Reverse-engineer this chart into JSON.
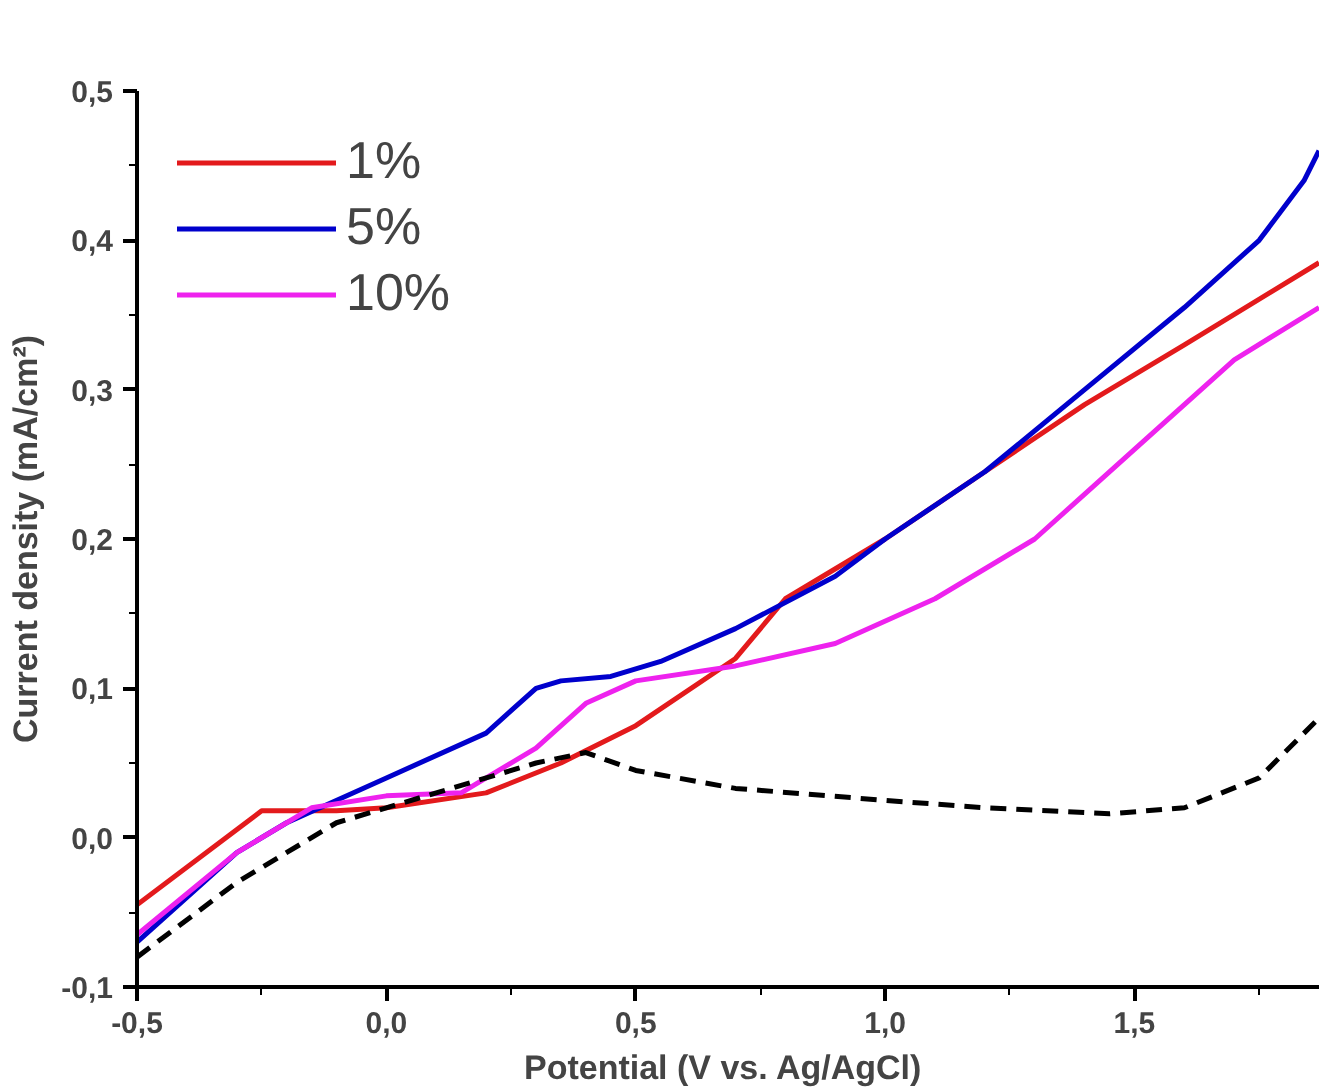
{
  "chart_data": {
    "type": "line",
    "xlabel": "Potential (V vs.  Ag/AgCl)",
    "ylabel": "Current density (mA/cm²)",
    "xlim": [
      -0.5,
      1.87
    ],
    "ylim": [
      -0.1,
      0.5
    ],
    "xticks": [
      {
        "value": -0.5,
        "label": "-0,5"
      },
      {
        "value": 0,
        "label": "0,0"
      },
      {
        "value": 0.5,
        "label": "0,5"
      },
      {
        "value": 1,
        "label": "1,0"
      },
      {
        "value": 1.5,
        "label": "1,5"
      }
    ],
    "yticks": [
      {
        "value": -0.1,
        "label": "-0,1"
      },
      {
        "value": 0,
        "label": "0,0"
      },
      {
        "value": 0.1,
        "label": "0,1"
      },
      {
        "value": 0.2,
        "label": "0,2"
      },
      {
        "value": 0.3,
        "label": "0,3"
      },
      {
        "value": 0.4,
        "label": "0,4"
      },
      {
        "value": 0.5,
        "label": "0,5"
      }
    ],
    "grid": false,
    "legend": "top left",
    "line_style": "solid",
    "series": [
      {
        "name": "1%",
        "color": "#e31a1c",
        "x": [
          -0.5,
          -0.25,
          -0.1,
          0.0,
          0.2,
          0.35,
          0.5,
          0.7,
          0.8,
          1.0,
          1.2,
          1.4,
          1.6,
          1.87
        ],
        "values": [
          -0.045,
          0.018,
          0.018,
          0.02,
          0.03,
          0.05,
          0.075,
          0.12,
          0.16,
          0.2,
          0.245,
          0.29,
          0.33,
          0.385
        ]
      },
      {
        "name": "5%",
        "color": "#0000cc",
        "x": [
          -0.5,
          -0.3,
          -0.2,
          0.0,
          0.2,
          0.3,
          0.35,
          0.45,
          0.55,
          0.7,
          0.9,
          1.0,
          1.2,
          1.4,
          1.6,
          1.75,
          1.84,
          1.87
        ],
        "values": [
          -0.07,
          -0.01,
          0.01,
          0.04,
          0.07,
          0.1,
          0.105,
          0.108,
          0.118,
          0.14,
          0.175,
          0.2,
          0.245,
          0.3,
          0.355,
          0.4,
          0.44,
          0.46
        ]
      },
      {
        "name": "10%",
        "color": "#ee22ee",
        "x": [
          -0.5,
          -0.3,
          -0.15,
          0.0,
          0.15,
          0.3,
          0.4,
          0.5,
          0.7,
          0.9,
          1.1,
          1.3,
          1.5,
          1.7,
          1.87
        ],
        "values": [
          -0.065,
          -0.01,
          0.02,
          0.028,
          0.03,
          0.06,
          0.09,
          0.105,
          0.115,
          0.13,
          0.16,
          0.2,
          0.26,
          0.32,
          0.355
        ]
      },
      {
        "color": "#000000",
        "line_style": "dashed",
        "x": [
          -0.5,
          -0.3,
          -0.1,
          0.1,
          0.3,
          0.4,
          0.5,
          0.7,
          1.0,
          1.2,
          1.45,
          1.6,
          1.75,
          1.87
        ],
        "values": [
          -0.08,
          -0.03,
          0.01,
          0.03,
          0.05,
          0.057,
          0.045,
          0.033,
          0.025,
          0.02,
          0.016,
          0.02,
          0.04,
          0.08
        ]
      }
    ]
  }
}
